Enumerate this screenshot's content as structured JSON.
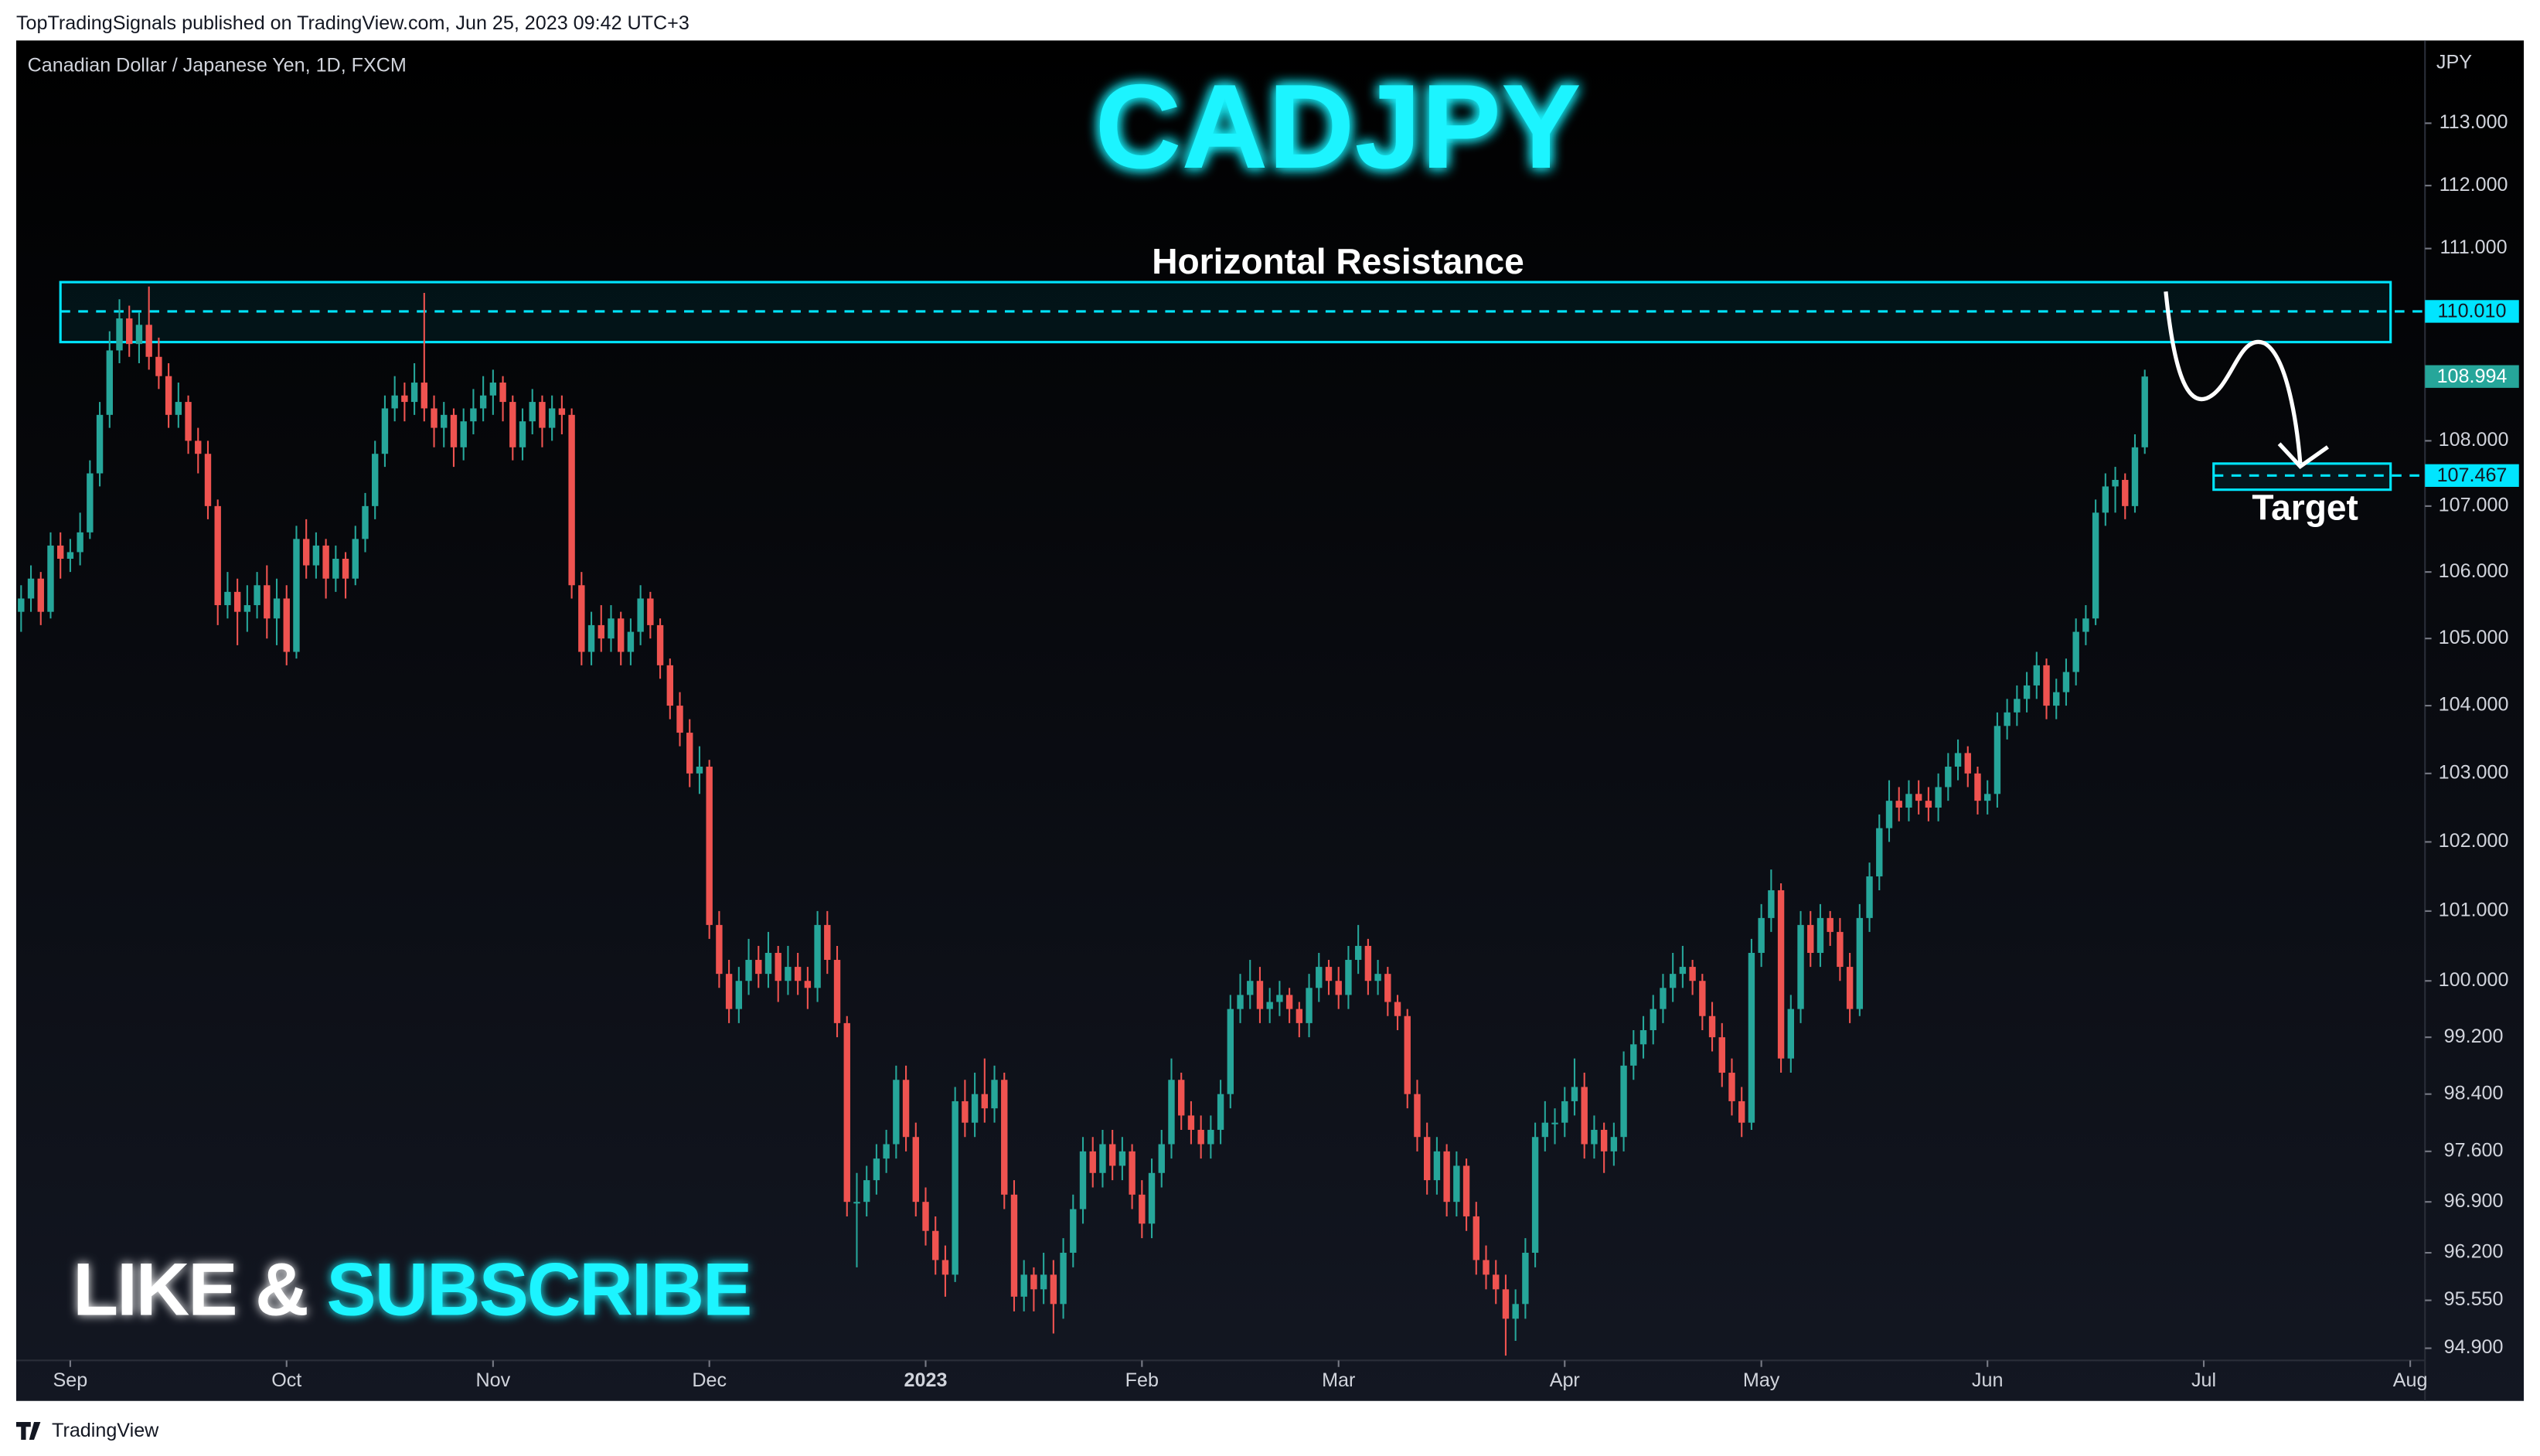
{
  "header": "TopTradingSignals published on TradingView.com, Jun 25, 2023 09:42 UTC+3",
  "footer": "TradingView",
  "banner": {
    "like": "LIKE & ",
    "subscribe": "SUBSCRIBE"
  },
  "chart_data": {
    "type": "candlestick",
    "title": "CADJPY",
    "subtitle": "Canadian Dollar / Japanese Yen, 1D, FXCM",
    "y_unit": "JPY",
    "log_scale": true,
    "up_color": "#26a69a",
    "down_color": "#ef5350",
    "zone_color": "#00e5ff",
    "ylim": [
      94.19,
      114.34
    ],
    "yticks": [
      {
        "value": 113,
        "label": "113.000"
      },
      {
        "value": 112,
        "label": "112.000"
      },
      {
        "value": 111,
        "label": "111.000"
      },
      {
        "value": 108,
        "label": "108.000"
      },
      {
        "value": 107,
        "label": "107.000"
      },
      {
        "value": 106,
        "label": "106.000"
      },
      {
        "value": 105,
        "label": "105.000"
      },
      {
        "value": 104,
        "label": "104.000"
      },
      {
        "value": 103,
        "label": "103.000"
      },
      {
        "value": 102,
        "label": "102.000"
      },
      {
        "value": 101,
        "label": "101.000"
      },
      {
        "value": 100,
        "label": "100.000"
      },
      {
        "value": 99.2,
        "label": "99.200"
      },
      {
        "value": 98.4,
        "label": "98.400"
      },
      {
        "value": 97.6,
        "label": "97.600"
      },
      {
        "value": 96.9,
        "label": "96.900"
      },
      {
        "value": 96.2,
        "label": "96.200"
      },
      {
        "value": 95.55,
        "label": "95.550"
      },
      {
        "value": 94.9,
        "label": "94.900"
      }
    ],
    "xlim": [
      -0.5,
      244.5
    ],
    "xticks": [
      {
        "value": 5,
        "label": "Sep"
      },
      {
        "value": 27,
        "label": "Oct"
      },
      {
        "value": 48,
        "label": "Nov"
      },
      {
        "value": 70,
        "label": "Dec"
      },
      {
        "value": 92,
        "label": "2023"
      },
      {
        "value": 114,
        "label": "Feb"
      },
      {
        "value": 134,
        "label": "Mar"
      },
      {
        "value": 157,
        "label": "Apr"
      },
      {
        "value": 177,
        "label": "May"
      },
      {
        "value": 200,
        "label": "Jun"
      },
      {
        "value": 222,
        "label": "Jul"
      },
      {
        "value": 243,
        "label": "Aug"
      }
    ],
    "last_price": 108.994,
    "resistance": {
      "label": "Horizontal Resistance",
      "level": {
        "value": 110.01,
        "label": "110.010"
      },
      "top": 110.47,
      "bottom": 109.53,
      "from": 4,
      "to": 241
    },
    "target": {
      "label": "Target",
      "level": 107.467,
      "top": 107.65,
      "bottom": 107.25,
      "from": 223,
      "to": 241
    },
    "ohlc": [
      [
        105.4,
        105.8,
        105.1,
        105.6
      ],
      [
        105.6,
        106.1,
        105.4,
        105.9
      ],
      [
        105.9,
        106.0,
        105.2,
        105.4
      ],
      [
        105.4,
        106.6,
        105.3,
        106.4
      ],
      [
        106.4,
        106.6,
        105.9,
        106.2
      ],
      [
        106.2,
        106.5,
        106.0,
        106.3
      ],
      [
        106.3,
        106.9,
        106.1,
        106.6
      ],
      [
        106.6,
        107.7,
        106.5,
        107.5
      ],
      [
        107.5,
        108.6,
        107.3,
        108.4
      ],
      [
        108.4,
        109.7,
        108.2,
        109.4
      ],
      [
        109.4,
        110.2,
        109.2,
        109.9
      ],
      [
        109.9,
        110.1,
        109.3,
        109.5
      ],
      [
        109.5,
        110.0,
        109.2,
        109.8
      ],
      [
        109.8,
        110.4,
        109.1,
        109.3
      ],
      [
        109.3,
        109.6,
        108.8,
        109.0
      ],
      [
        109.0,
        109.2,
        108.2,
        108.4
      ],
      [
        108.4,
        108.9,
        108.2,
        108.6
      ],
      [
        108.6,
        108.7,
        107.8,
        108.0
      ],
      [
        108.0,
        108.2,
        107.5,
        107.8
      ],
      [
        107.8,
        108.0,
        106.8,
        107.0
      ],
      [
        107.0,
        107.1,
        105.2,
        105.5
      ],
      [
        105.5,
        106.0,
        105.3,
        105.7
      ],
      [
        105.7,
        105.9,
        104.9,
        105.4
      ],
      [
        105.4,
        105.8,
        105.1,
        105.5
      ],
      [
        105.5,
        106.0,
        105.3,
        105.8
      ],
      [
        105.8,
        106.1,
        105.0,
        105.3
      ],
      [
        105.3,
        105.9,
        104.9,
        105.6
      ],
      [
        105.6,
        105.8,
        104.6,
        104.8
      ],
      [
        104.8,
        106.7,
        104.7,
        106.5
      ],
      [
        106.5,
        106.8,
        105.9,
        106.1
      ],
      [
        106.1,
        106.6,
        105.9,
        106.4
      ],
      [
        106.4,
        106.5,
        105.6,
        105.9
      ],
      [
        105.9,
        106.4,
        105.7,
        106.2
      ],
      [
        106.2,
        106.3,
        105.6,
        105.9
      ],
      [
        105.9,
        106.7,
        105.8,
        106.5
      ],
      [
        106.5,
        107.2,
        106.3,
        107.0
      ],
      [
        107.0,
        108.0,
        106.8,
        107.8
      ],
      [
        107.8,
        108.7,
        107.6,
        108.5
      ],
      [
        108.5,
        109.0,
        108.3,
        108.7
      ],
      [
        108.7,
        108.9,
        108.3,
        108.6
      ],
      [
        108.6,
        109.2,
        108.4,
        108.9
      ],
      [
        108.9,
        110.3,
        108.3,
        108.5
      ],
      [
        108.5,
        108.7,
        107.9,
        108.2
      ],
      [
        108.2,
        108.6,
        107.9,
        108.4
      ],
      [
        108.4,
        108.5,
        107.6,
        107.9
      ],
      [
        107.9,
        108.5,
        107.7,
        108.3
      ],
      [
        108.3,
        108.8,
        108.1,
        108.5
      ],
      [
        108.5,
        109.0,
        108.3,
        108.7
      ],
      [
        108.7,
        109.1,
        108.4,
        108.9
      ],
      [
        108.9,
        109.0,
        108.3,
        108.6
      ],
      [
        108.6,
        108.7,
        107.7,
        107.9
      ],
      [
        107.9,
        108.5,
        107.7,
        108.3
      ],
      [
        108.3,
        108.8,
        108.1,
        108.6
      ],
      [
        108.6,
        108.7,
        107.9,
        108.2
      ],
      [
        108.2,
        108.7,
        108.0,
        108.5
      ],
      [
        108.5,
        108.7,
        108.1,
        108.4
      ],
      [
        108.4,
        108.5,
        105.6,
        105.8
      ],
      [
        105.8,
        106.0,
        104.6,
        104.8
      ],
      [
        104.8,
        105.4,
        104.6,
        105.2
      ],
      [
        105.2,
        105.5,
        104.8,
        105.0
      ],
      [
        105.0,
        105.5,
        104.8,
        105.3
      ],
      [
        105.3,
        105.4,
        104.6,
        104.8
      ],
      [
        104.8,
        105.3,
        104.6,
        105.1
      ],
      [
        105.1,
        105.8,
        104.9,
        105.6
      ],
      [
        105.6,
        105.7,
        105.0,
        105.2
      ],
      [
        105.2,
        105.3,
        104.4,
        104.6
      ],
      [
        104.6,
        104.7,
        103.8,
        104.0
      ],
      [
        104.0,
        104.2,
        103.4,
        103.6
      ],
      [
        103.6,
        103.8,
        102.8,
        103.0
      ],
      [
        103.0,
        103.4,
        102.7,
        103.1
      ],
      [
        103.1,
        103.2,
        100.6,
        100.8
      ],
      [
        100.8,
        101.0,
        99.9,
        100.1
      ],
      [
        100.1,
        100.3,
        99.4,
        99.6
      ],
      [
        99.6,
        100.2,
        99.4,
        100.0
      ],
      [
        100.0,
        100.6,
        99.8,
        100.3
      ],
      [
        100.3,
        100.5,
        99.9,
        100.1
      ],
      [
        100.1,
        100.7,
        99.9,
        100.4
      ],
      [
        100.4,
        100.5,
        99.7,
        100.0
      ],
      [
        100.0,
        100.5,
        99.8,
        100.2
      ],
      [
        100.2,
        100.4,
        99.8,
        100.0
      ],
      [
        100.0,
        100.2,
        99.6,
        99.9
      ],
      [
        99.9,
        101.0,
        99.7,
        100.8
      ],
      [
        100.8,
        101.0,
        100.1,
        100.3
      ],
      [
        100.3,
        100.5,
        99.2,
        99.4
      ],
      [
        99.4,
        99.5,
        96.7,
        96.9
      ],
      [
        96.9,
        97.3,
        96.0,
        96.9
      ],
      [
        96.9,
        97.4,
        96.7,
        97.2
      ],
      [
        97.2,
        97.7,
        97.0,
        97.5
      ],
      [
        97.5,
        97.9,
        97.3,
        97.7
      ],
      [
        97.7,
        98.8,
        97.5,
        98.6
      ],
      [
        98.6,
        98.8,
        97.6,
        97.8
      ],
      [
        97.8,
        98.0,
        96.7,
        96.9
      ],
      [
        96.9,
        97.1,
        96.3,
        96.5
      ],
      [
        96.5,
        96.7,
        95.9,
        96.1
      ],
      [
        96.1,
        96.3,
        95.6,
        95.9
      ],
      [
        95.9,
        98.5,
        95.8,
        98.3
      ],
      [
        98.3,
        98.6,
        97.8,
        98.0
      ],
      [
        98.0,
        98.7,
        97.8,
        98.4
      ],
      [
        98.4,
        98.9,
        98.0,
        98.2
      ],
      [
        98.2,
        98.8,
        98.0,
        98.6
      ],
      [
        98.6,
        98.7,
        96.8,
        97.0
      ],
      [
        97.0,
        97.2,
        95.4,
        95.6
      ],
      [
        95.6,
        96.1,
        95.4,
        95.9
      ],
      [
        95.9,
        96.0,
        95.4,
        95.7
      ],
      [
        95.7,
        96.2,
        95.5,
        95.9
      ],
      [
        95.9,
        96.1,
        95.1,
        95.5
      ],
      [
        95.5,
        96.4,
        95.3,
        96.2
      ],
      [
        96.2,
        97.0,
        96.0,
        96.8
      ],
      [
        96.8,
        97.8,
        96.6,
        97.6
      ],
      [
        97.6,
        97.8,
        97.1,
        97.3
      ],
      [
        97.3,
        97.9,
        97.1,
        97.7
      ],
      [
        97.7,
        97.9,
        97.2,
        97.4
      ],
      [
        97.4,
        97.8,
        97.2,
        97.6
      ],
      [
        97.6,
        97.7,
        96.8,
        97.0
      ],
      [
        97.0,
        97.2,
        96.4,
        96.6
      ],
      [
        96.6,
        97.5,
        96.4,
        97.3
      ],
      [
        97.3,
        97.9,
        97.1,
        97.7
      ],
      [
        97.7,
        98.9,
        97.5,
        98.6
      ],
      [
        98.6,
        98.7,
        97.9,
        98.1
      ],
      [
        98.1,
        98.3,
        97.7,
        97.9
      ],
      [
        97.9,
        98.1,
        97.5,
        97.7
      ],
      [
        97.7,
        98.1,
        97.5,
        97.9
      ],
      [
        97.9,
        98.6,
        97.7,
        98.4
      ],
      [
        98.4,
        99.8,
        98.2,
        99.6
      ],
      [
        99.6,
        100.1,
        99.4,
        99.8
      ],
      [
        99.8,
        100.3,
        99.6,
        100.0
      ],
      [
        100.0,
        100.2,
        99.4,
        99.6
      ],
      [
        99.6,
        99.9,
        99.4,
        99.7
      ],
      [
        99.7,
        100.0,
        99.5,
        99.8
      ],
      [
        99.8,
        99.9,
        99.4,
        99.6
      ],
      [
        99.6,
        99.7,
        99.2,
        99.4
      ],
      [
        99.4,
        100.1,
        99.2,
        99.9
      ],
      [
        99.9,
        100.4,
        99.7,
        100.2
      ],
      [
        100.2,
        100.3,
        99.8,
        100.0
      ],
      [
        100.0,
        100.2,
        99.6,
        99.8
      ],
      [
        99.8,
        100.5,
        99.6,
        100.3
      ],
      [
        100.3,
        100.8,
        100.1,
        100.5
      ],
      [
        100.5,
        100.6,
        99.8,
        100.0
      ],
      [
        100.0,
        100.3,
        99.8,
        100.1
      ],
      [
        100.1,
        100.2,
        99.5,
        99.7
      ],
      [
        99.7,
        99.8,
        99.3,
        99.5
      ],
      [
        99.5,
        99.6,
        98.2,
        98.4
      ],
      [
        98.4,
        98.6,
        97.6,
        97.8
      ],
      [
        97.8,
        98.0,
        97.0,
        97.2
      ],
      [
        97.2,
        97.8,
        97.0,
        97.6
      ],
      [
        97.6,
        97.7,
        96.7,
        96.9
      ],
      [
        96.9,
        97.6,
        96.7,
        97.4
      ],
      [
        97.4,
        97.5,
        96.5,
        96.7
      ],
      [
        96.7,
        96.9,
        95.9,
        96.1
      ],
      [
        96.1,
        96.3,
        95.7,
        95.9
      ],
      [
        95.9,
        96.1,
        95.5,
        95.7
      ],
      [
        95.7,
        95.9,
        94.8,
        95.3
      ],
      [
        95.3,
        95.7,
        95.0,
        95.5
      ],
      [
        95.5,
        96.4,
        95.3,
        96.2
      ],
      [
        96.2,
        98.0,
        96.0,
        97.8
      ],
      [
        97.8,
        98.3,
        97.6,
        98.0
      ],
      [
        98.0,
        98.2,
        97.7,
        98.0
      ],
      [
        98.0,
        98.5,
        97.8,
        98.3
      ],
      [
        98.3,
        98.9,
        98.1,
        98.5
      ],
      [
        98.5,
        98.7,
        97.5,
        97.7
      ],
      [
        97.7,
        98.1,
        97.5,
        97.9
      ],
      [
        97.9,
        98.0,
        97.3,
        97.6
      ],
      [
        97.6,
        98.0,
        97.4,
        97.8
      ],
      [
        97.8,
        99.0,
        97.6,
        98.8
      ],
      [
        98.8,
        99.3,
        98.6,
        99.1
      ],
      [
        99.1,
        99.5,
        98.9,
        99.3
      ],
      [
        99.3,
        99.8,
        99.1,
        99.6
      ],
      [
        99.6,
        100.1,
        99.4,
        99.9
      ],
      [
        99.9,
        100.4,
        99.7,
        100.1
      ],
      [
        100.1,
        100.5,
        99.9,
        100.2
      ],
      [
        100.2,
        100.3,
        99.8,
        100.0
      ],
      [
        100.0,
        100.1,
        99.3,
        99.5
      ],
      [
        99.5,
        99.7,
        99.0,
        99.2
      ],
      [
        99.2,
        99.4,
        98.5,
        98.7
      ],
      [
        98.7,
        98.9,
        98.1,
        98.3
      ],
      [
        98.3,
        98.5,
        97.8,
        98.0
      ],
      [
        98.0,
        100.6,
        97.9,
        100.4
      ],
      [
        100.4,
        101.1,
        100.2,
        100.9
      ],
      [
        100.9,
        101.6,
        100.7,
        101.3
      ],
      [
        101.3,
        101.4,
        98.7,
        98.9
      ],
      [
        98.9,
        99.8,
        98.7,
        99.6
      ],
      [
        99.6,
        101.0,
        99.4,
        100.8
      ],
      [
        100.8,
        101.0,
        100.2,
        100.4
      ],
      [
        100.4,
        101.1,
        100.2,
        100.9
      ],
      [
        100.9,
        101.0,
        100.5,
        100.7
      ],
      [
        100.7,
        100.9,
        100.0,
        100.2
      ],
      [
        100.2,
        100.4,
        99.4,
        99.6
      ],
      [
        99.6,
        101.1,
        99.5,
        100.9
      ],
      [
        100.9,
        101.7,
        100.7,
        101.5
      ],
      [
        101.5,
        102.4,
        101.3,
        102.2
      ],
      [
        102.2,
        102.9,
        102.0,
        102.6
      ],
      [
        102.6,
        102.8,
        102.3,
        102.5
      ],
      [
        102.5,
        102.9,
        102.3,
        102.7
      ],
      [
        102.7,
        102.9,
        102.4,
        102.6
      ],
      [
        102.6,
        102.8,
        102.3,
        102.5
      ],
      [
        102.5,
        103.0,
        102.3,
        102.8
      ],
      [
        102.8,
        103.3,
        102.6,
        103.1
      ],
      [
        103.1,
        103.5,
        102.9,
        103.3
      ],
      [
        103.3,
        103.4,
        102.8,
        103.0
      ],
      [
        103.0,
        103.1,
        102.4,
        102.6
      ],
      [
        102.6,
        102.9,
        102.4,
        102.7
      ],
      [
        102.7,
        103.9,
        102.5,
        103.7
      ],
      [
        103.7,
        104.1,
        103.5,
        103.9
      ],
      [
        103.9,
        104.3,
        103.7,
        104.1
      ],
      [
        104.1,
        104.5,
        103.9,
        104.3
      ],
      [
        104.3,
        104.8,
        104.1,
        104.6
      ],
      [
        104.6,
        104.7,
        103.8,
        104.0
      ],
      [
        104.0,
        104.4,
        103.8,
        104.2
      ],
      [
        104.2,
        104.7,
        104.0,
        104.5
      ],
      [
        104.5,
        105.3,
        104.3,
        105.1
      ],
      [
        105.1,
        105.5,
        104.9,
        105.3
      ],
      [
        105.3,
        107.1,
        105.2,
        106.9
      ],
      [
        106.9,
        107.5,
        106.7,
        107.3
      ],
      [
        107.3,
        107.6,
        106.9,
        107.4
      ],
      [
        107.4,
        107.5,
        106.8,
        107.0
      ],
      [
        107.0,
        108.1,
        106.9,
        107.9
      ],
      [
        107.9,
        109.1,
        107.8,
        108.994
      ]
    ]
  }
}
